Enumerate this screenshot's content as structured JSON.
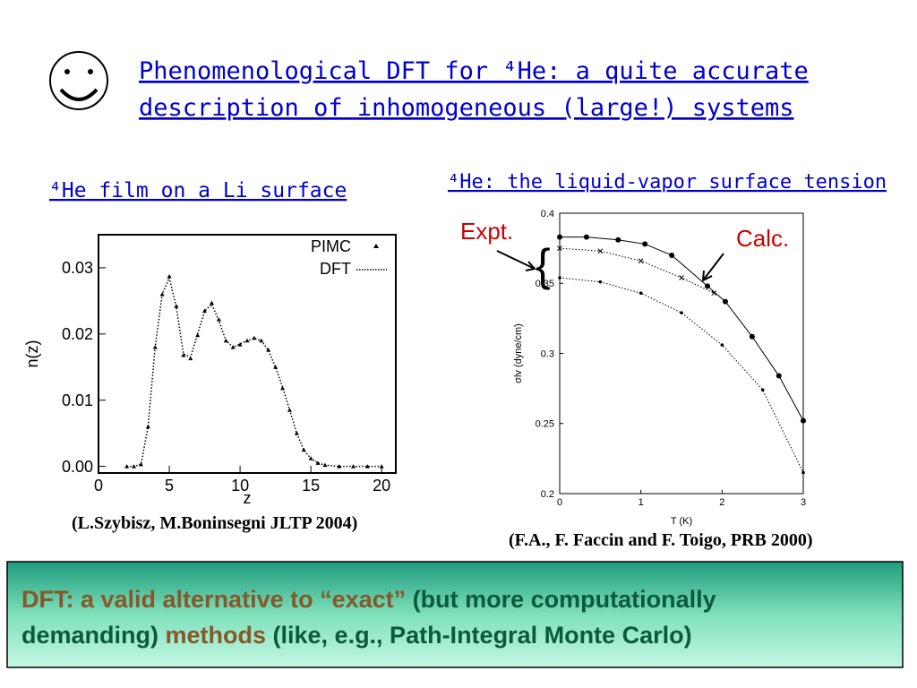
{
  "title_lines": [
    "Phenomenological DFT for ⁴He: a quite accurate",
    "description of inhomogeneous (large!) systems"
  ],
  "left_heading": "⁴He film on a Li surface",
  "right_heading": "⁴He: the liquid-vapor surface tension",
  "left_citation": "(L.Szybisz, M.Boninsegni JLTP 2004)",
  "right_citation": "(F.A., F. Faccin and F. Toigo, PRB 2000)",
  "conclusion_lines": [
    [
      {
        "text": "DFT: a valid alternative to “exact”",
        "color": "#86582a"
      },
      {
        "text": " (but more computationally",
        "color": "#0a5a3c"
      }
    ],
    [
      {
        "text": "demanding)",
        "color": "#0a5a3c"
      },
      {
        "text": " methods",
        "color": "#86582a"
      },
      {
        "text": " (like, e.g., Path-Integral Monte Carlo)",
        "color": "#0a5a3c"
      }
    ]
  ],
  "chart_data": [
    {
      "type": "line",
      "xlabel": "z",
      "ylabel": "n(z)",
      "xlim": [
        0,
        21
      ],
      "ylim": [
        -0.001,
        0.035
      ],
      "xticks": [
        0,
        5,
        10,
        15,
        20
      ],
      "yticks": [
        {
          "value": 0,
          "label": "0.00"
        },
        0.01,
        0.02,
        0.03
      ],
      "legend": "upper right",
      "x": [
        2,
        2.5,
        3,
        3.5,
        4,
        4.5,
        5,
        5.5,
        6,
        6.5,
        7,
        7.5,
        8,
        8.5,
        9,
        9.5,
        10,
        10.5,
        11,
        11.5,
        12,
        12.5,
        13,
        13.5,
        14,
        14.5,
        15,
        15.5,
        16,
        17,
        18,
        19,
        20
      ],
      "series": [
        {
          "name": "PIMC",
          "color": "#000000",
          "style": "triangles",
          "values": [
            0,
            0,
            0.0003,
            0.006,
            0.018,
            0.026,
            0.0287,
            0.0242,
            0.0168,
            0.0163,
            0.0198,
            0.0235,
            0.0247,
            0.0222,
            0.019,
            0.018,
            0.0184,
            0.019,
            0.0194,
            0.019,
            0.0176,
            0.015,
            0.0118,
            0.0085,
            0.005,
            0.0025,
            0.0012,
            0.0005,
            0.0002,
            0,
            0,
            0,
            0
          ]
        },
        {
          "name": "DFT",
          "color": "#000000",
          "style": "dotted",
          "values": [
            0,
            0,
            0.0003,
            0.006,
            0.018,
            0.026,
            0.0285,
            0.024,
            0.017,
            0.0165,
            0.02,
            0.0235,
            0.0245,
            0.022,
            0.019,
            0.018,
            0.0185,
            0.019,
            0.0193,
            0.019,
            0.0175,
            0.015,
            0.012,
            0.0085,
            0.005,
            0.0025,
            0.0012,
            0.0005,
            0.0002,
            0,
            0,
            0,
            0
          ]
        }
      ]
    },
    {
      "type": "line",
      "xlabel": "T  (K)",
      "ylabel": "σlv  (dyne/cm)",
      "xlim": [
        0,
        3
      ],
      "ylim": [
        0.2,
        0.4
      ],
      "xticks": [
        0,
        1,
        2,
        3
      ],
      "yticks": [
        0.2,
        0.25,
        0.3,
        0.35,
        0.4
      ],
      "annotations": [
        {
          "text": "Expt.",
          "color": "#cc0000"
        },
        {
          "text": "Calc.",
          "color": "#cc0000"
        }
      ],
      "series": [
        {
          "color": "#000000",
          "style": "line-dots",
          "x": [
            0,
            0.33,
            0.72,
            1.05,
            1.38,
            1.82,
            2.04,
            2.37,
            2.7,
            3
          ],
          "values": [
            0.383,
            0.383,
            0.381,
            0.378,
            0.37,
            0.348,
            0.337,
            0.312,
            0.284,
            0.252
          ]
        },
        {
          "color": "#000000",
          "style": "dotted-x",
          "x": [
            0,
            0.5,
            1,
            1.5,
            1.9
          ],
          "values": [
            0.375,
            0.373,
            0.366,
            0.354,
            0.343
          ]
        },
        {
          "color": "#000000",
          "style": "dotted-dots",
          "x": [
            0,
            0.5,
            1,
            1.5,
            2,
            2.5,
            3
          ],
          "values": [
            0.354,
            0.351,
            0.343,
            0.329,
            0.306,
            0.274,
            0.215
          ]
        }
      ]
    }
  ]
}
